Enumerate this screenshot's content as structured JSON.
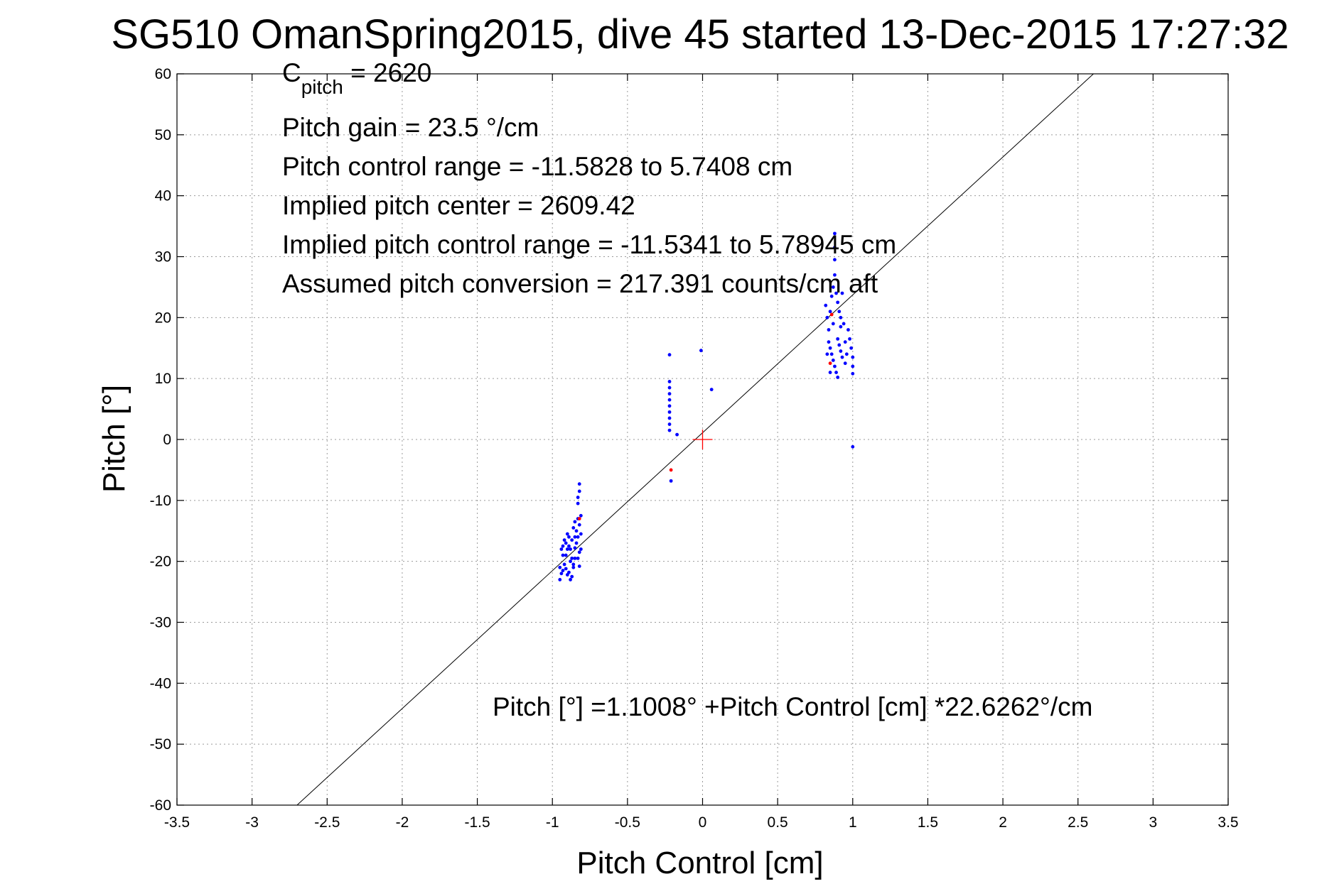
{
  "title": "SG510 OmanSpring2015, dive 45 started 13-Dec-2015 17:27:32",
  "annotations": {
    "cpitch_base": "C",
    "cpitch_sub": "pitch",
    "cpitch_value": " = 2620",
    "pitch_gain": "Pitch gain = 23.5 °/cm",
    "control_range": "Pitch control range = -11.5828 to 5.7408 cm",
    "implied_center": "Implied pitch center = 2609.42",
    "implied_range": "Implied pitch control range = -11.5341 to 5.78945 cm",
    "conversion": "Assumed pitch conversion = 217.391 counts/cm aft",
    "fit_equation": "Pitch [°] =1.1008° +Pitch Control [cm] *22.6262°/cm"
  },
  "chart_data": {
    "type": "scatter",
    "xlabel": "Pitch Control [cm]",
    "ylabel": "Pitch [°]",
    "xlim": [
      -3.5,
      3.5
    ],
    "ylim": [
      -60,
      60
    ],
    "xticks": [
      -3.5,
      -3,
      -2.5,
      -2,
      -1.5,
      -1,
      -0.5,
      0,
      0.5,
      1,
      1.5,
      2,
      2.5,
      3,
      3.5
    ],
    "xtick_labels": [
      "-3.5",
      "-3",
      "-2.5",
      "-2",
      "-1.5",
      "-1",
      "-0.5",
      "0",
      "0.5",
      "1",
      "1.5",
      "2",
      "2.5",
      "3",
      "3.5"
    ],
    "yticks": [
      -60,
      -50,
      -40,
      -30,
      -20,
      -10,
      0,
      10,
      20,
      30,
      40,
      50,
      60
    ],
    "ytick_labels": [
      "-60",
      "-50",
      "-40",
      "-30",
      "-20",
      "-10",
      "0",
      "10",
      "20",
      "30",
      "40",
      "50",
      "60"
    ],
    "grid": true,
    "fit_line": {
      "intercept": 1.1008,
      "slope": 22.6262,
      "color": "#000000"
    },
    "center_marker": {
      "x": 0,
      "y": 0,
      "color": "#ff0000"
    },
    "series": [
      {
        "color": "#0000ff",
        "points": [
          [
            -0.95,
            -23.0
          ],
          [
            -0.94,
            -22.0
          ],
          [
            -0.93,
            -21.5
          ],
          [
            -0.92,
            -20.5
          ],
          [
            -0.91,
            -19.0
          ],
          [
            -0.9,
            -18.0
          ],
          [
            -0.89,
            -17.5
          ],
          [
            -0.88,
            -20.0
          ],
          [
            -0.87,
            -22.5
          ],
          [
            -0.86,
            -21.0
          ],
          [
            -0.85,
            -19.5
          ],
          [
            -0.84,
            -17.0
          ],
          [
            -0.83,
            -16.0
          ],
          [
            -0.82,
            -18.5
          ],
          [
            -0.81,
            -15.5
          ],
          [
            -0.95,
            -21.0
          ],
          [
            -0.93,
            -19.0
          ],
          [
            -0.91,
            -17.0
          ],
          [
            -0.9,
            -15.5
          ],
          [
            -0.89,
            -21.8
          ],
          [
            -0.88,
            -18.0
          ],
          [
            -0.87,
            -16.5
          ],
          [
            -0.86,
            -14.5
          ],
          [
            -0.85,
            -13.5
          ],
          [
            -0.84,
            -15.0
          ],
          [
            -0.83,
            -13.0
          ],
          [
            -0.82,
            -14.0
          ],
          [
            -0.81,
            -12.5
          ],
          [
            -0.94,
            -18.0
          ],
          [
            -0.92,
            -16.5
          ],
          [
            -0.9,
            -22.2
          ],
          [
            -0.88,
            -23.0
          ],
          [
            -0.86,
            -20.5
          ],
          [
            -0.85,
            -17.8
          ],
          [
            -0.83,
            -19.5
          ],
          [
            -0.82,
            -20.8
          ],
          [
            -0.81,
            -18.0
          ],
          [
            -0.87,
            -19.5
          ],
          [
            -0.89,
            -16.0
          ],
          [
            -0.91,
            -21.2
          ],
          [
            -0.83,
            -10.5
          ],
          [
            -0.83,
            -9.5
          ],
          [
            -0.82,
            -8.5
          ],
          [
            -0.82,
            -7.3
          ],
          [
            -0.93,
            -17.5
          ],
          [
            -0.85,
            -16.0
          ],
          [
            -0.22,
            13.9
          ],
          [
            -0.22,
            9.5
          ],
          [
            -0.22,
            8.5
          ],
          [
            -0.22,
            7.5
          ],
          [
            -0.22,
            6.5
          ],
          [
            -0.22,
            5.5
          ],
          [
            -0.22,
            4.5
          ],
          [
            -0.22,
            3.5
          ],
          [
            -0.22,
            2.5
          ],
          [
            -0.22,
            1.5
          ],
          [
            -0.17,
            0.8
          ],
          [
            -0.21,
            -6.8
          ],
          [
            -0.01,
            14.6
          ],
          [
            0.06,
            8.2
          ],
          [
            0.82,
            22.0
          ],
          [
            0.83,
            20.0
          ],
          [
            0.84,
            18.0
          ],
          [
            0.85,
            21.0
          ],
          [
            0.86,
            23.5
          ],
          [
            0.87,
            25.0
          ],
          [
            0.88,
            27.0
          ],
          [
            0.88,
            29.5
          ],
          [
            0.88,
            31.5
          ],
          [
            0.88,
            33.8
          ],
          [
            0.89,
            24.0
          ],
          [
            0.9,
            22.5
          ],
          [
            0.91,
            21.0
          ],
          [
            0.92,
            20.0
          ],
          [
            0.93,
            24.0
          ],
          [
            0.84,
            16.0
          ],
          [
            0.85,
            15.0
          ],
          [
            0.86,
            14.0
          ],
          [
            0.87,
            13.0
          ],
          [
            0.88,
            12.0
          ],
          [
            0.89,
            11.0
          ],
          [
            0.9,
            16.5
          ],
          [
            0.91,
            15.5
          ],
          [
            0.92,
            14.5
          ],
          [
            0.93,
            13.5
          ],
          [
            0.95,
            12.5
          ],
          [
            0.97,
            18.0
          ],
          [
            0.98,
            16.5
          ],
          [
            0.99,
            15.0
          ],
          [
            1.0,
            13.5
          ],
          [
            1.0,
            12.0
          ],
          [
            1.0,
            10.8
          ],
          [
            0.95,
            16.0
          ],
          [
            0.96,
            14.0
          ],
          [
            0.85,
            11.0
          ],
          [
            0.83,
            14.0
          ],
          [
            0.9,
            10.2
          ],
          [
            0.92,
            18.5
          ],
          [
            0.94,
            19.0
          ],
          [
            0.87,
            19.0
          ],
          [
            1.0,
            -1.2
          ]
        ]
      },
      {
        "color": "#ff0000",
        "points": [
          [
            -0.21,
            -5.0
          ],
          [
            -0.82,
            -13.0
          ],
          [
            0.85,
            12.5
          ],
          [
            0.86,
            20.5
          ]
        ]
      }
    ]
  }
}
